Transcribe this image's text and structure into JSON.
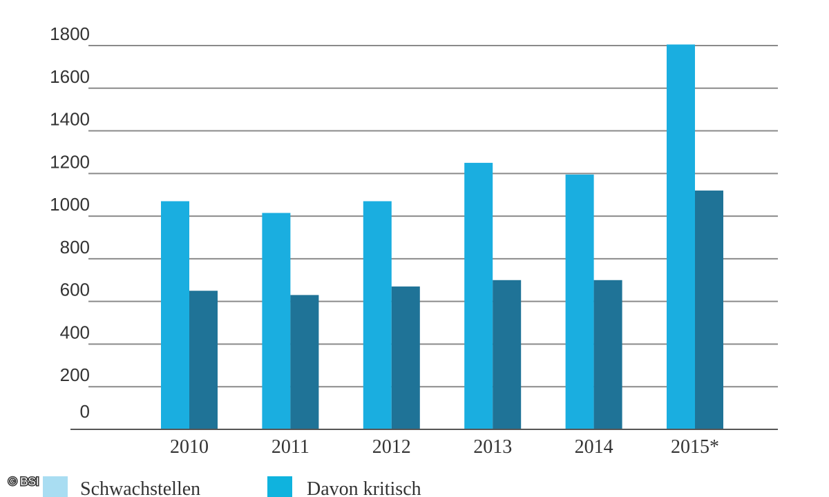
{
  "chart_data": {
    "type": "bar",
    "categories": [
      "2010",
      "2011",
      "2012",
      "2013",
      "2014",
      "2015*"
    ],
    "series": [
      {
        "name": "Schwachstellen",
        "values": [
          1070,
          1015,
          1070,
          1250,
          1195,
          1805
        ],
        "color": "#1aaee0"
      },
      {
        "name": "Davon kritisch",
        "values": [
          650,
          630,
          670,
          700,
          700,
          1120
        ],
        "color": "#1f7397"
      }
    ],
    "y_ticks": [
      "0",
      "200",
      "400",
      "600",
      "800",
      "1000",
      "1200",
      "1400",
      "1600",
      "1800"
    ],
    "ylim": [
      0,
      1800
    ],
    "grid": true,
    "legend": {
      "placement": "bottom-left",
      "items": [
        {
          "label": "Schwachstellen",
          "swatch_color": "#a9ddf2"
        },
        {
          "label": "Davon kritisch",
          "swatch_color": "#0fb3de"
        }
      ]
    },
    "title": "",
    "xlabel": "",
    "ylabel": ""
  },
  "credit": "© BSI"
}
